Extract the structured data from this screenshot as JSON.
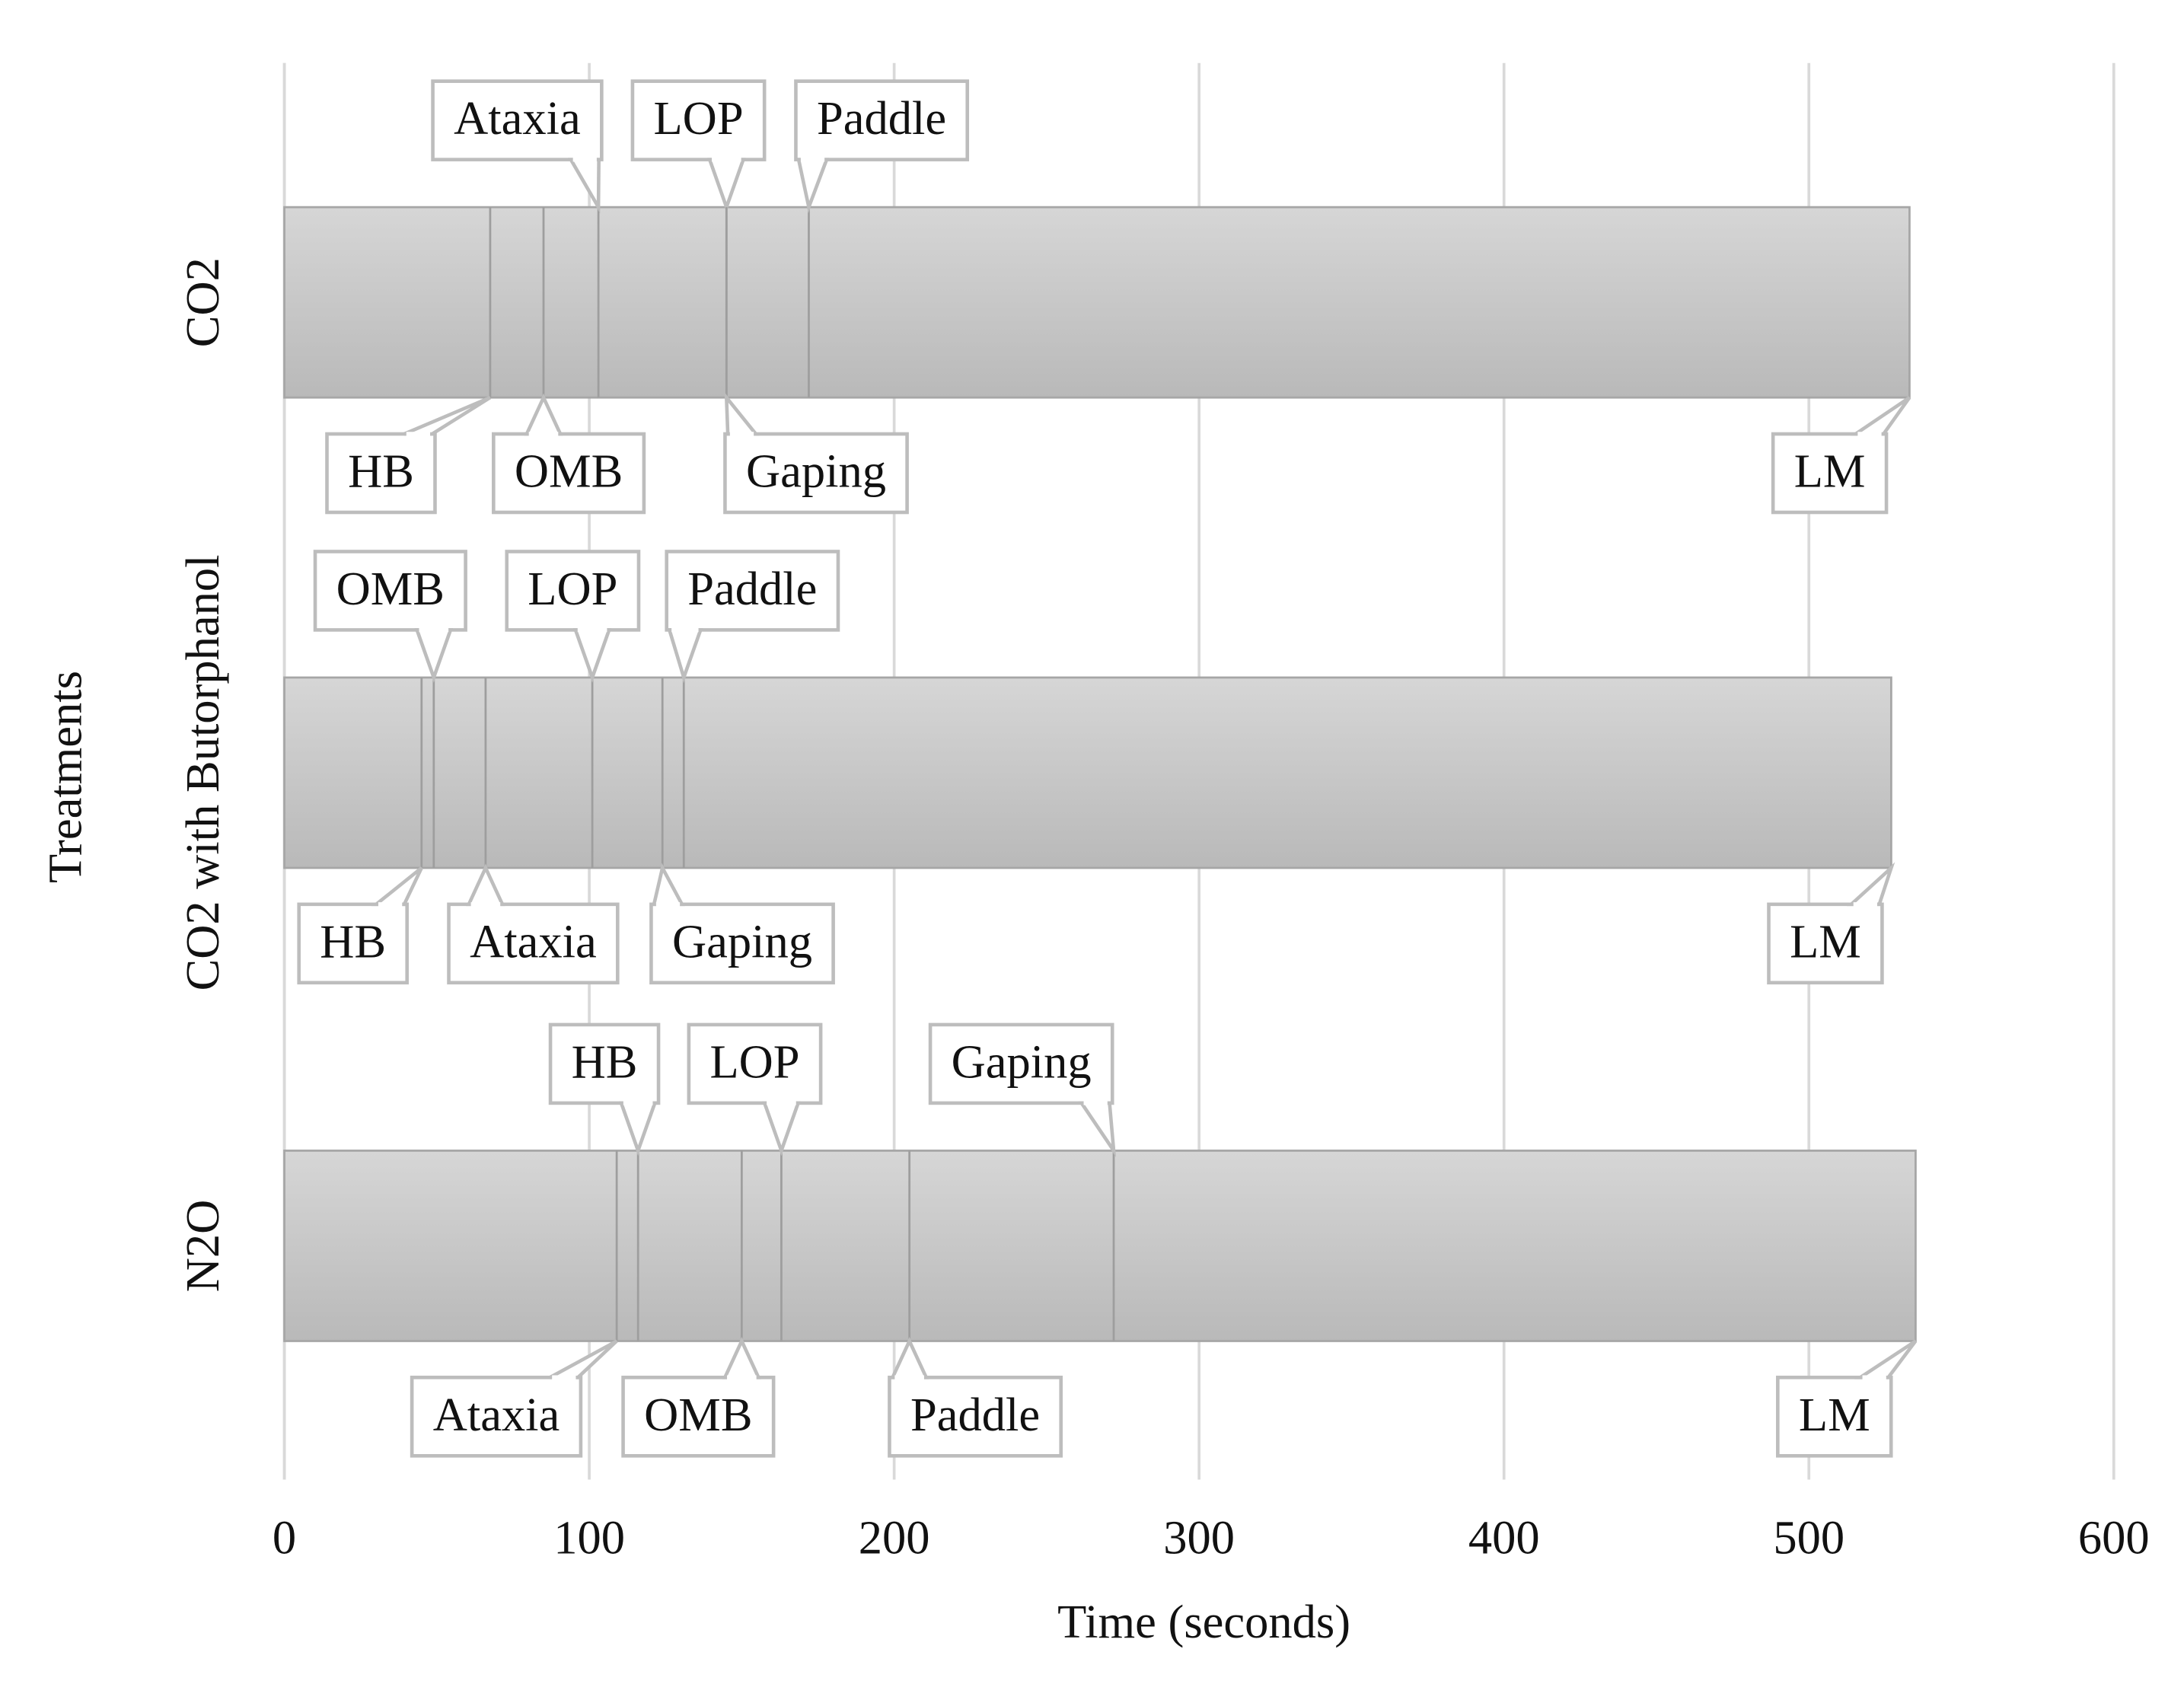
{
  "chart_data": {
    "type": "timeline",
    "xlabel": "Time (seconds)",
    "ylabel": "Treatments",
    "xlim": [
      0,
      600
    ],
    "xticks": [
      0,
      100,
      200,
      300,
      400,
      500,
      600
    ],
    "grid": true,
    "color": "#c8c8c8",
    "rows": [
      {
        "name": "CO2",
        "events": [
          {
            "label": "HB",
            "value": 67.5
          },
          {
            "label": "OMB",
            "value": 85
          },
          {
            "label": "Ataxia",
            "value": 103
          },
          {
            "label": "LOP",
            "value": 145
          },
          {
            "label": "Gaping",
            "value": 145
          },
          {
            "label": "Paddle",
            "value": 172
          },
          {
            "label": "LM",
            "value": 533
          }
        ]
      },
      {
        "name": "CO2 with Butorphanol",
        "events": [
          {
            "label": "HB",
            "value": 45
          },
          {
            "label": "OMB",
            "value": 49
          },
          {
            "label": "Ataxia",
            "value": 66
          },
          {
            "label": "LOP",
            "value": 101
          },
          {
            "label": "Gaping",
            "value": 124
          },
          {
            "label": "Paddle",
            "value": 131
          },
          {
            "label": "LM",
            "value": 527
          }
        ]
      },
      {
        "name": "N2O",
        "events": [
          {
            "label": "Ataxia",
            "value": 109
          },
          {
            "label": "HB",
            "value": 116
          },
          {
            "label": "OMB",
            "value": 150
          },
          {
            "label": "LOP",
            "value": 163
          },
          {
            "label": "Paddle",
            "value": 205
          },
          {
            "label": "Gaping",
            "value": 272
          },
          {
            "label": "LM",
            "value": 535
          }
        ]
      }
    ]
  }
}
